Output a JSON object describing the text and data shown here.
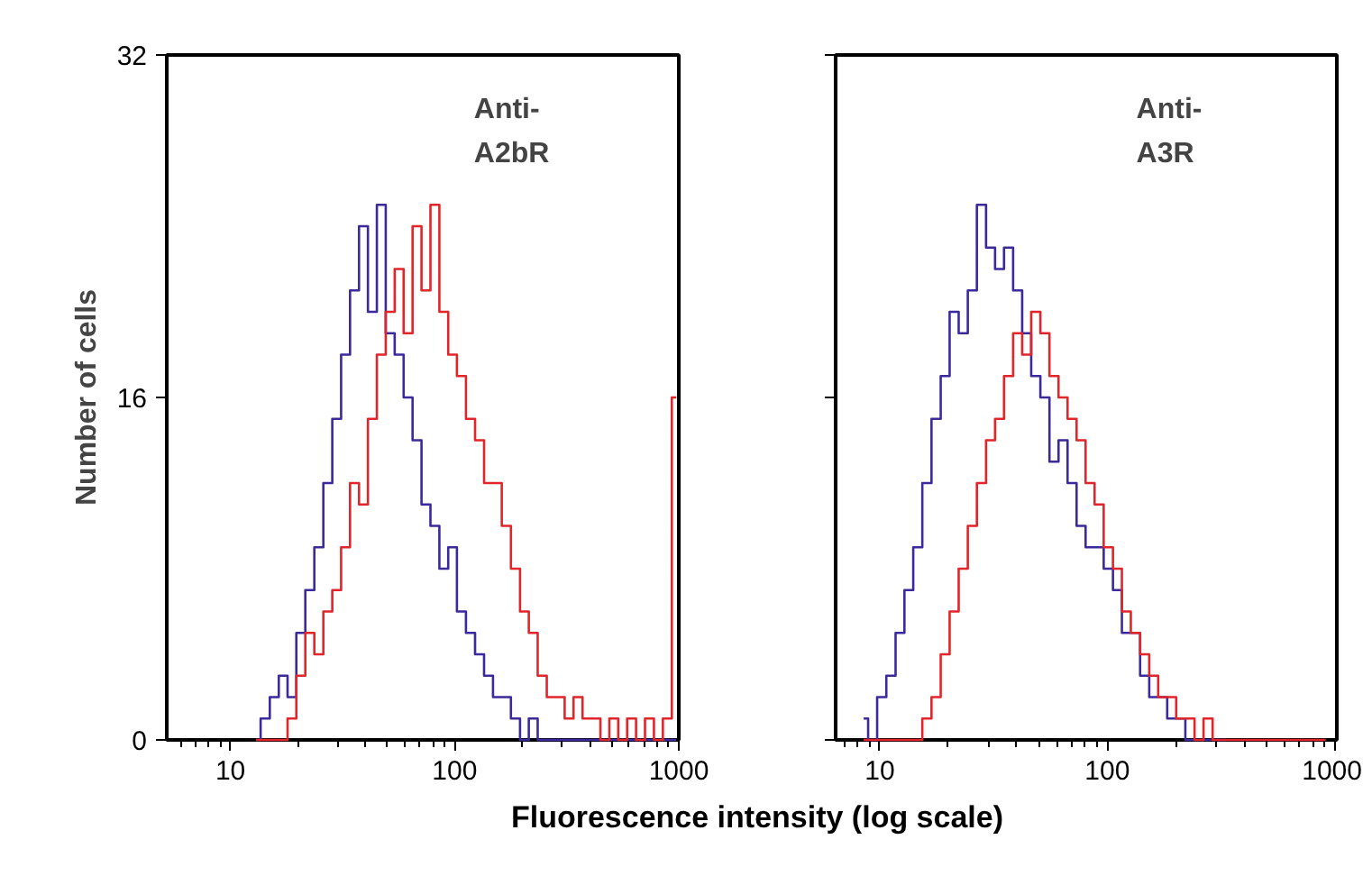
{
  "chart_data": [
    {
      "type": "step",
      "ylabel": "Number of cells",
      "xlabel": "Fluorescence intensity (log scale)",
      "annotations": [
        "Anti-\nA2bR"
      ],
      "log": "x",
      "xlim": [
        5.2,
        1000
      ],
      "xticks": [
        10,
        100,
        1000
      ],
      "ylim": [
        0,
        32
      ],
      "yticks": [
        0,
        16,
        32
      ],
      "grid": false,
      "x": [
        13,
        14.3,
        15.7,
        17.2,
        18.8,
        20.6,
        22.6,
        24.8,
        27.2,
        29.8,
        32.6,
        35.8,
        39.2,
        43,
        47.1,
        51.6,
        56.6,
        62,
        68,
        74.5,
        81.7,
        89.5,
        98,
        107,
        118,
        129,
        142,
        155,
        170,
        187,
        205,
        224,
        246,
        270,
        296,
        324,
        355,
        390,
        427,
        468,
        513,
        562,
        616,
        675,
        740,
        811,
        889,
        975
      ],
      "series": [
        {
          "color": "#3b2a9c",
          "values": [
            0,
            1,
            2,
            3,
            2,
            5,
            7,
            9,
            12,
            15,
            18,
            21,
            24,
            20,
            25,
            19,
            18,
            16,
            14,
            11,
            10,
            8,
            9,
            6,
            5,
            4,
            3,
            2,
            2,
            1,
            0,
            1,
            0,
            0,
            0,
            0,
            0,
            0,
            0,
            0,
            0,
            0,
            0,
            0,
            0,
            0,
            0,
            0
          ]
        },
        {
          "color": "#e0262a",
          "values": [
            0,
            0,
            0,
            0,
            1,
            3,
            5,
            4,
            6,
            7,
            9,
            12,
            11,
            15,
            18,
            20,
            22,
            19,
            24,
            21,
            25,
            20,
            18,
            17,
            15,
            14,
            12,
            12,
            10,
            8,
            6,
            5,
            3,
            2,
            2,
            1,
            2,
            1,
            1,
            0,
            1,
            0,
            1,
            0,
            1,
            0,
            1,
            16
          ]
        }
      ]
    },
    {
      "type": "step",
      "annotations": [
        "Anti-\nA3R"
      ],
      "log": "x",
      "xlim": [
        6.4,
        1020
      ],
      "xticks": [
        10,
        100,
        1000
      ],
      "ylim": [
        0,
        32
      ],
      "yticks": [
        0,
        16,
        32
      ],
      "tick_labels": "x",
      "grid": false,
      "x": [
        8.5,
        9.3,
        10.2,
        11.2,
        12.3,
        13.4,
        14.7,
        16.1,
        17.7,
        19.4,
        21.2,
        23.3,
        25.5,
        28,
        30.7,
        33.6,
        36.8,
        40.4,
        44.2,
        48.5,
        53.2,
        58.3,
        63.9,
        70,
        76.7,
        84,
        92,
        101,
        111,
        121,
        133,
        146,
        160,
        175,
        192,
        210,
        231,
        253,
        277,
        304,
        333,
        365,
        400,
        438,
        480,
        526,
        577,
        632,
        693,
        759,
        832,
        912
      ],
      "series": [
        {
          "color": "#3b2a9c",
          "values": [
            1,
            0,
            2,
            3,
            5,
            7,
            9,
            12,
            15,
            17,
            20,
            19,
            21,
            25,
            23,
            22,
            23,
            21,
            19,
            17,
            16,
            13,
            14,
            12,
            10,
            9,
            9,
            8,
            7,
            5,
            5,
            3,
            2,
            2,
            1,
            1,
            0,
            0,
            0,
            0,
            0,
            null,
            null,
            null,
            null,
            null,
            null,
            null,
            null,
            null,
            null,
            null
          ]
        },
        {
          "color": "#e0262a",
          "values": [
            0,
            0,
            0,
            0,
            0,
            0,
            0,
            1,
            2,
            4,
            6,
            8,
            10,
            12,
            14,
            15,
            17,
            19,
            18,
            20,
            19,
            17,
            16,
            15,
            14,
            12,
            11,
            9,
            8,
            6,
            5,
            4,
            3,
            2,
            2,
            1,
            1,
            0,
            1,
            0,
            0,
            0,
            0,
            0,
            0,
            0,
            0,
            0,
            0,
            0,
            0,
            0
          ]
        }
      ]
    }
  ]
}
